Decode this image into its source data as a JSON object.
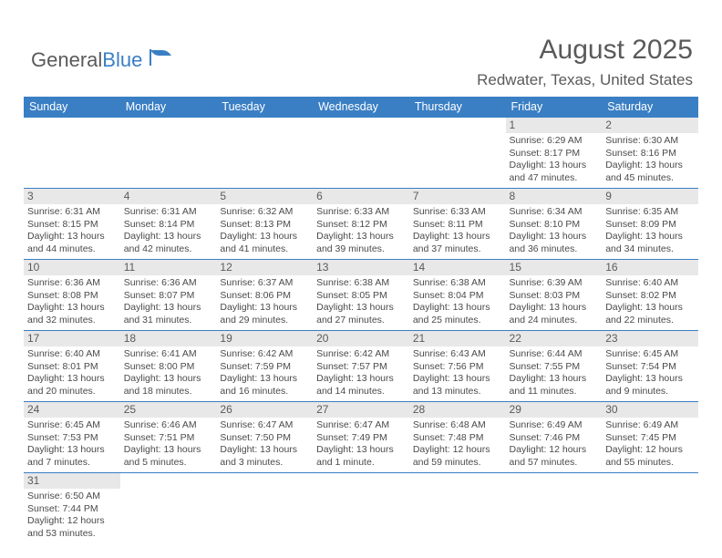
{
  "logo": {
    "part1": "General",
    "part2": "Blue"
  },
  "title": "August 2025",
  "location": "Redwater, Texas, United States",
  "colors": {
    "header_bg": "#3a7fc4",
    "header_fg": "#ffffff",
    "daynum_bg": "#e8e8e8",
    "text": "#5a5a5a",
    "detail": "#4a4a4a",
    "border": "#3a7fc4"
  },
  "header": [
    "Sunday",
    "Monday",
    "Tuesday",
    "Wednesday",
    "Thursday",
    "Friday",
    "Saturday"
  ],
  "weeks": [
    [
      {
        "n": "",
        "sr": "",
        "ss": "",
        "dl": ""
      },
      {
        "n": "",
        "sr": "",
        "ss": "",
        "dl": ""
      },
      {
        "n": "",
        "sr": "",
        "ss": "",
        "dl": ""
      },
      {
        "n": "",
        "sr": "",
        "ss": "",
        "dl": ""
      },
      {
        "n": "",
        "sr": "",
        "ss": "",
        "dl": ""
      },
      {
        "n": "1",
        "sr": "6:29 AM",
        "ss": "8:17 PM",
        "dl": "13 hours and 47 minutes."
      },
      {
        "n": "2",
        "sr": "6:30 AM",
        "ss": "8:16 PM",
        "dl": "13 hours and 45 minutes."
      }
    ],
    [
      {
        "n": "3",
        "sr": "6:31 AM",
        "ss": "8:15 PM",
        "dl": "13 hours and 44 minutes."
      },
      {
        "n": "4",
        "sr": "6:31 AM",
        "ss": "8:14 PM",
        "dl": "13 hours and 42 minutes."
      },
      {
        "n": "5",
        "sr": "6:32 AM",
        "ss": "8:13 PM",
        "dl": "13 hours and 41 minutes."
      },
      {
        "n": "6",
        "sr": "6:33 AM",
        "ss": "8:12 PM",
        "dl": "13 hours and 39 minutes."
      },
      {
        "n": "7",
        "sr": "6:33 AM",
        "ss": "8:11 PM",
        "dl": "13 hours and 37 minutes."
      },
      {
        "n": "8",
        "sr": "6:34 AM",
        "ss": "8:10 PM",
        "dl": "13 hours and 36 minutes."
      },
      {
        "n": "9",
        "sr": "6:35 AM",
        "ss": "8:09 PM",
        "dl": "13 hours and 34 minutes."
      }
    ],
    [
      {
        "n": "10",
        "sr": "6:36 AM",
        "ss": "8:08 PM",
        "dl": "13 hours and 32 minutes."
      },
      {
        "n": "11",
        "sr": "6:36 AM",
        "ss": "8:07 PM",
        "dl": "13 hours and 31 minutes."
      },
      {
        "n": "12",
        "sr": "6:37 AM",
        "ss": "8:06 PM",
        "dl": "13 hours and 29 minutes."
      },
      {
        "n": "13",
        "sr": "6:38 AM",
        "ss": "8:05 PM",
        "dl": "13 hours and 27 minutes."
      },
      {
        "n": "14",
        "sr": "6:38 AM",
        "ss": "8:04 PM",
        "dl": "13 hours and 25 minutes."
      },
      {
        "n": "15",
        "sr": "6:39 AM",
        "ss": "8:03 PM",
        "dl": "13 hours and 24 minutes."
      },
      {
        "n": "16",
        "sr": "6:40 AM",
        "ss": "8:02 PM",
        "dl": "13 hours and 22 minutes."
      }
    ],
    [
      {
        "n": "17",
        "sr": "6:40 AM",
        "ss": "8:01 PM",
        "dl": "13 hours and 20 minutes."
      },
      {
        "n": "18",
        "sr": "6:41 AM",
        "ss": "8:00 PM",
        "dl": "13 hours and 18 minutes."
      },
      {
        "n": "19",
        "sr": "6:42 AM",
        "ss": "7:59 PM",
        "dl": "13 hours and 16 minutes."
      },
      {
        "n": "20",
        "sr": "6:42 AM",
        "ss": "7:57 PM",
        "dl": "13 hours and 14 minutes."
      },
      {
        "n": "21",
        "sr": "6:43 AM",
        "ss": "7:56 PM",
        "dl": "13 hours and 13 minutes."
      },
      {
        "n": "22",
        "sr": "6:44 AM",
        "ss": "7:55 PM",
        "dl": "13 hours and 11 minutes."
      },
      {
        "n": "23",
        "sr": "6:45 AM",
        "ss": "7:54 PM",
        "dl": "13 hours and 9 minutes."
      }
    ],
    [
      {
        "n": "24",
        "sr": "6:45 AM",
        "ss": "7:53 PM",
        "dl": "13 hours and 7 minutes."
      },
      {
        "n": "25",
        "sr": "6:46 AM",
        "ss": "7:51 PM",
        "dl": "13 hours and 5 minutes."
      },
      {
        "n": "26",
        "sr": "6:47 AM",
        "ss": "7:50 PM",
        "dl": "13 hours and 3 minutes."
      },
      {
        "n": "27",
        "sr": "6:47 AM",
        "ss": "7:49 PM",
        "dl": "13 hours and 1 minute."
      },
      {
        "n": "28",
        "sr": "6:48 AM",
        "ss": "7:48 PM",
        "dl": "12 hours and 59 minutes."
      },
      {
        "n": "29",
        "sr": "6:49 AM",
        "ss": "7:46 PM",
        "dl": "12 hours and 57 minutes."
      },
      {
        "n": "30",
        "sr": "6:49 AM",
        "ss": "7:45 PM",
        "dl": "12 hours and 55 minutes."
      }
    ],
    [
      {
        "n": "31",
        "sr": "6:50 AM",
        "ss": "7:44 PM",
        "dl": "12 hours and 53 minutes."
      },
      {
        "n": "",
        "sr": "",
        "ss": "",
        "dl": ""
      },
      {
        "n": "",
        "sr": "",
        "ss": "",
        "dl": ""
      },
      {
        "n": "",
        "sr": "",
        "ss": "",
        "dl": ""
      },
      {
        "n": "",
        "sr": "",
        "ss": "",
        "dl": ""
      },
      {
        "n": "",
        "sr": "",
        "ss": "",
        "dl": ""
      },
      {
        "n": "",
        "sr": "",
        "ss": "",
        "dl": ""
      }
    ]
  ],
  "labels": {
    "sunrise": "Sunrise: ",
    "sunset": "Sunset: ",
    "daylight": "Daylight: "
  }
}
